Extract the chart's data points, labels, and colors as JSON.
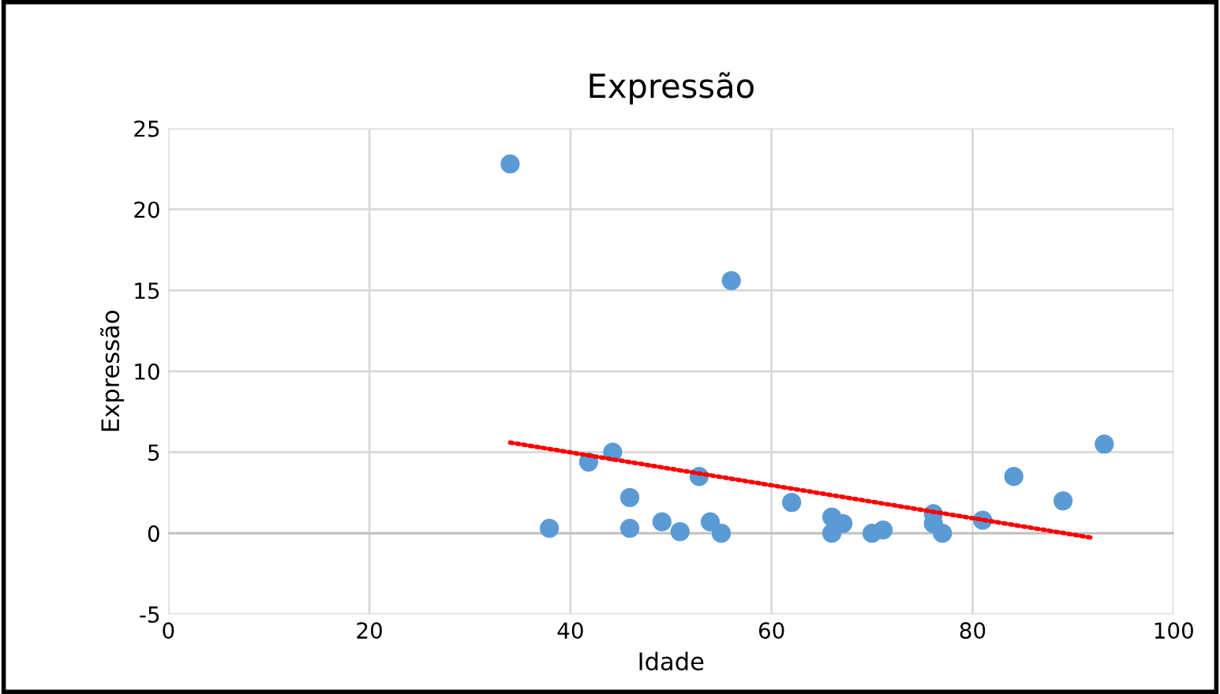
{
  "chart_data": {
    "type": "scatter",
    "title": "Expressão",
    "xlabel": "Idade",
    "ylabel": "Expressão",
    "xlim": [
      0,
      100
    ],
    "xticks": [
      0,
      20,
      40,
      60,
      80,
      100
    ],
    "ylim": [
      -5,
      25
    ],
    "yticks": [
      -5,
      0,
      5,
      10,
      15,
      20,
      25
    ],
    "grid": true,
    "legend": false,
    "series": [
      {
        "marker": "circle",
        "color": "#5b9bd5",
        "x": [
          34,
          56,
          44.2,
          41.8,
          52.8,
          45.9,
          37.9,
          45.9,
          49.1,
          50.9,
          53.9,
          55,
          62,
          66,
          66,
          67.1,
          70,
          71.1,
          76.1,
          76.1,
          77,
          81,
          84.1,
          89,
          93.1
        ],
        "values": [
          22.8,
          15.6,
          5.0,
          4.4,
          3.5,
          2.2,
          0.3,
          0.3,
          0.7,
          0.1,
          0.7,
          0,
          1.9,
          1.0,
          0,
          0.6,
          0,
          0.2,
          1.2,
          0.6,
          0,
          0.8,
          3.5,
          2.0,
          5.5
        ]
      },
      {
        "type": "line",
        "marker": "none",
        "color": "#ff0000",
        "line_style": "dotted",
        "x": [
          34,
          92.1
        ],
        "values": [
          5.6,
          -0.3
        ]
      }
    ]
  }
}
